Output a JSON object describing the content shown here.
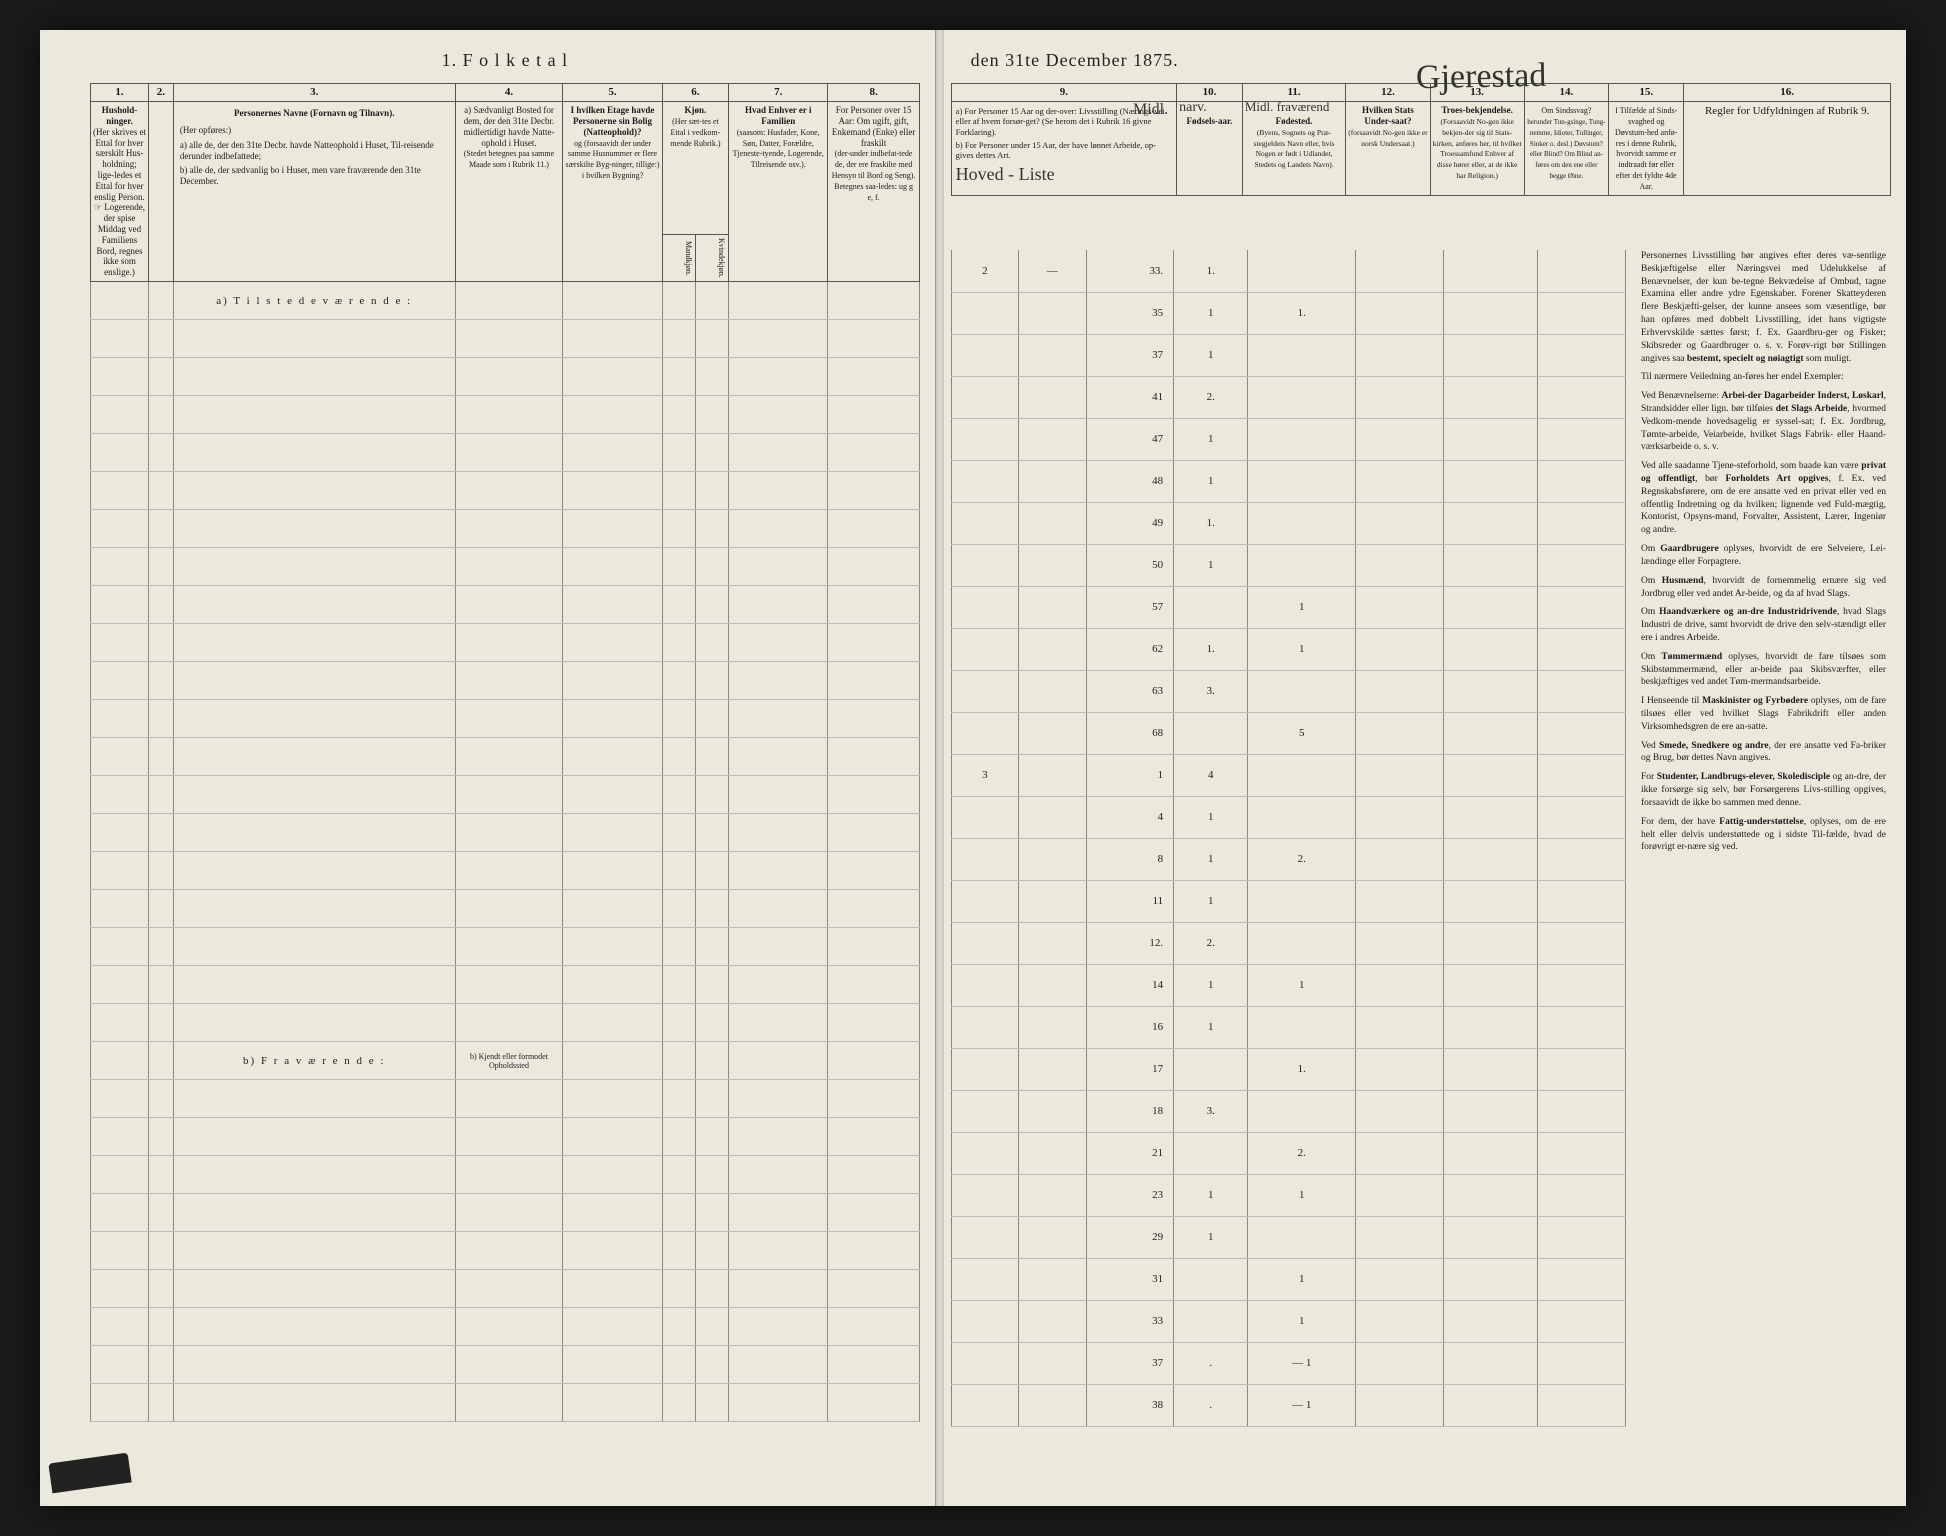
{
  "title_left": "1.  F o l k e t a l",
  "title_right": "den 31te December 1875.",
  "handwritten_place": "Gjerestad",
  "columns_left": {
    "c1": {
      "num": "1.",
      "head": "Hushold-\nninger.",
      "sub": "(Her skrives et Ettal for hver særskilt Hus-holdning; lige-ledes et Ettal for hver enslig Person.\n☞ Logerende, der spise Middag ved Familiens Bord, regnes ikke som enslige.)"
    },
    "c2": {
      "num": "2.",
      "head": ""
    },
    "c3": {
      "num": "3.",
      "head": "Personernes Navne (Fornavn og Tilnavn).",
      "sub_a": "a) alle de, der den 31te Decbr. havde Natteophold i Huset, Til-reisende derunder indbefattede;",
      "sub_b": "b) alle de, der sædvanlig bo i Huset, men vare fraværende den 31te December."
    },
    "c4": {
      "num": "4.",
      "head": "a) Sædvanligt Bosted for dem, der den 31te Decbr. midlertidigt havde Natte-ophold i Huset.",
      "sub": "(Stedet betegnes paa samme Maade som i Rubrik 11.)"
    },
    "c4b": "b) Kjendt eller formodet Opholdssted",
    "c5": {
      "num": "5.",
      "head": "I hvilken Etage havde Personerne sin Bolig (Natteophold)?",
      "sub": "og (forsaavidt der under samme Husnummer er flere særskilte Byg-ninger, tillige:) i hvilken Bygning?"
    },
    "c6": {
      "num": "6.",
      "head": "Kjøn.",
      "sub": "(Her sæt-tes et Ettal i vedkom-mende Rubrik.)",
      "m": "Mandkjøn.",
      "k": "Kvindekjøn."
    },
    "c7": {
      "num": "7.",
      "head": "Hvad Enhver er i Familien",
      "sub": "(saasom: Husfader, Kone, Søn, Datter, Forældre, Tjeneste-tyende, Logerende, Tilreisende osv.)."
    },
    "c8": {
      "num": "8.",
      "head": "For Personer over 15 Aar: Om ugift, gift, Enkemand (Enke) eller fraskilt",
      "sub": "(der-under indbefat-tede de, der ere fraskilte med Hensyn til Bord og Seng).\nBetegnes saa-ledes:\nug  g  e,  f."
    }
  },
  "columns_right": {
    "c9": {
      "num": "9.",
      "head_a": "a) For Personer 15 Aar og der-over: Livsstilling (Nærings-vei eller af hvem forsør-get? (Se herom det i Rubrik 16 givne Forklaring).",
      "head_b": "b) For Personer under 15 Aar, der have lønnet Arbeide, op-gives dettes Art.",
      "hand1": "Midl.",
      "hand2": "Hoved - Liste"
    },
    "c10": {
      "num": "10.",
      "head": "Fødsels-aar.",
      "hand": "narv."
    },
    "c11": {
      "num": "11.",
      "head": "Fødested.",
      "sub": "(Byens, Sognets og Præ-stegjeldets Navn eller, hvis Nogen er født i Udlandet, Stedets og Landets Navn).",
      "hand": "Midl.\nfraværend"
    },
    "c12": {
      "num": "12.",
      "head": "Hvilken Stats Under-saat?",
      "sub": "(forsaavidt No-gen ikke er norsk Undersaat.)"
    },
    "c13": {
      "num": "13.",
      "head": "Troes-bekjendelse.",
      "sub": "(Forsaavidt No-gen ikke bekjen-der sig til Stats-kirken, anføres her, til hvilket Troessamfund Enhver af disse hører eller, at de ikke har Religion.)"
    },
    "c14": {
      "num": "14.",
      "head": "Om Sindssvag?",
      "sub": "herunder Tun-gsinge, Tung-nemme, Idioter, Tullinger, Sinker o. desl.) Døvstum? eller Blind? Om Blind an-føres om den ene eller begge Øine."
    },
    "c15": {
      "num": "15.",
      "head": "I Tilfælde af Sinds-svaghed og Døvstum-hed anfø-res i denne Rubrik, hvorvidt samme er indtraadt før eller efter det fyldte 4de Aar."
    },
    "c16": {
      "num": "16.",
      "head": "Regler for Udfyldningen\naf\nRubrik 9."
    }
  },
  "section_a": "a)  T i l s t e d e v æ r e n d e :",
  "section_b": "b)  F r a v æ r e n d e :",
  "rows": [
    {
      "c9a": "2",
      "c9b": "—",
      "c9c": "33.",
      "c10": "1.",
      "c11": ""
    },
    {
      "c9a": "",
      "c9b": "",
      "c9c": "35",
      "c10": "1",
      "c11": "1."
    },
    {
      "c9a": "",
      "c9b": "",
      "c9c": "37",
      "c10": "1",
      "c11": ""
    },
    {
      "c9a": "",
      "c9b": "",
      "c9c": "41",
      "c10": "2.",
      "c11": ""
    },
    {
      "c9a": "",
      "c9b": "",
      "c9c": "47",
      "c10": "1",
      "c11": ""
    },
    {
      "c9a": "",
      "c9b": "",
      "c9c": "48",
      "c10": "1",
      "c11": ""
    },
    {
      "c9a": "",
      "c9b": "",
      "c9c": "49",
      "c10": "1.",
      "c11": ""
    },
    {
      "c9a": "",
      "c9b": "",
      "c9c": "50",
      "c10": "1",
      "c11": ""
    },
    {
      "c9a": "",
      "c9b": "",
      "c9c": "57",
      "c10": "",
      "c11": "1"
    },
    {
      "c9a": "",
      "c9b": "",
      "c9c": "62",
      "c10": "1.",
      "c11": "1"
    },
    {
      "c9a": "",
      "c9b": "",
      "c9c": "63",
      "c10": "3.",
      "c11": ""
    },
    {
      "c9a": "",
      "c9b": "",
      "c9c": "68",
      "c10": "",
      "c11": "5"
    },
    {
      "c9a": "3",
      "c9b": "",
      "c9c": "1",
      "c10": "4",
      "c11": ""
    },
    {
      "c9a": "",
      "c9b": "",
      "c9c": "4",
      "c10": "1",
      "c11": ""
    },
    {
      "c9a": "",
      "c9b": "",
      "c9c": "8",
      "c10": "1",
      "c11": "2."
    },
    {
      "c9a": "",
      "c9b": "",
      "c9c": "11",
      "c10": "1",
      "c11": ""
    },
    {
      "c9a": "",
      "c9b": "",
      "c9c": "12.",
      "c10": "2.",
      "c11": ""
    },
    {
      "c9a": "",
      "c9b": "",
      "c9c": "14",
      "c10": "1",
      "c11": "1"
    },
    {
      "c9a": "",
      "c9b": "",
      "c9c": "16",
      "c10": "1",
      "c11": ""
    },
    {
      "c9a": "",
      "c9b": "",
      "c9c": "17",
      "c10": "",
      "c11": "1."
    },
    {
      "c9a": "",
      "c9b": "",
      "c9c": "18",
      "c10": "3.",
      "c11": ""
    },
    {
      "c9a": "",
      "c9b": "",
      "c9c": "21",
      "c10": "",
      "c11": "2."
    },
    {
      "c9a": "",
      "c9b": "",
      "c9c": "23",
      "c10": "1",
      "c11": "1"
    },
    {
      "c9a": "",
      "c9b": "",
      "c9c": "29",
      "c10": "1",
      "c11": ""
    },
    {
      "c9a": "",
      "c9b": "",
      "c9c": "31",
      "c10": "",
      "c11": "1"
    },
    {
      "c9a": "",
      "c9b": "",
      "c9c": "33",
      "c10": "",
      "c11": "1"
    },
    {
      "c9a": "",
      "c9b": "",
      "c9c": "37",
      "c10": ".",
      "c11": "— 1"
    },
    {
      "c9a": "",
      "c9b": "",
      "c9c": "38",
      "c10": ".",
      "c11": "— 1"
    }
  ],
  "instructions": [
    "Personernes Livsstilling bør angives efter deres væ-sentlige Beskjæftigelse eller Næringsvei med Udelukkelse af Benævnelser, der kun be-tegne Bekvædelse af Ombud, tagne Examina eller andre ydre Egenskaber. Forener Skatteyderen flere Beskjæfti-gelser, der kunne ansees som væsentlige, bør han opføres med dobbelt Livsstilling, idet hans vigtigste Erhvervskilde sættes først; f. Ex. Gaardbru-ger og Fisker; Skibsreder og Gaardbruger o. s. v. Forøv-rigt bør Stillingen angives saa bestemt, specielt og nøiagtigt som muligt.",
    "Til nærmere Veiledning an-føres her endel Exempler:",
    "Ved Benævnelserne: Arbei-der Dagarbeider Inderst, Løskarl, Strandsidder eller lign. bør tilføies det Slags Arbeide, hvormed Vedkom-mende hovedsagelig er syssel-sat; f. Ex. Jordbrug, Tømte-arbeide, Veiarbeide, hvilket Slags Fabrik- eller Haand-værksarbeide o. s. v.",
    "Ved alle saadanne Tjene-steforhold, som baade kan være privat og offentligt, bør Forholdets Art opgives, f. Ex. ved Regnskabsførere, om de ere ansatte ved en privat eller ved en offentlig Indretning og da hvilken; lignende ved Fuld-mægtig, Kontorist, Opsyns-mand, Forvalter, Assistent, Lærer, Ingeniør og andre.",
    "Om Gaardbrugere oplyses, hvorvidt de ere Selveiere, Lei-lændinge eller Forpagtere.",
    "Om Husmænd, hvorvidt de fornemmelig ernære sig ved Jordbrug eller ved andet Ar-beide, og da af hvad Slags.",
    "Om Haandværkere og an-dre Industridrivende, hvad Slags Industri de drive, samt hvorvidt de drive den selv-stændigt eller ere i andres Arbeide.",
    "Om Tømmermænd oplyses, hvorvidt de fare tilsøes som Skibstømmermænd, eller ar-beide paa Skibsværfter, eller beskjæftiges ved andet Tøm-mermandsarbeide.",
    "I Henseende til Maskinister og Fyrbødere oplyses, om de fare tilsøes eller ved hvilket Slags Fabrikdrift eller anden Virksomhedsgren de ere an-satte.",
    "Ved Smede, Snedkere og andre, der ere ansatte ved Fa-briker og Brug, bør dettes Navn angives.",
    "For Studenter, Landbrugs-elever, Skoledisciple og an-dre, der ikke forsørge sig selv, bør Forsørgerens Livs-stilling opgives, forsaavidt de ikke bo sammen med denne.",
    "For dem, der have Fattig-understøttelse, oplyses, om de ere helt eller delvis understøttede og i sidste Til-fælde, hvad de forøvrigt er-nære sig ved."
  ]
}
